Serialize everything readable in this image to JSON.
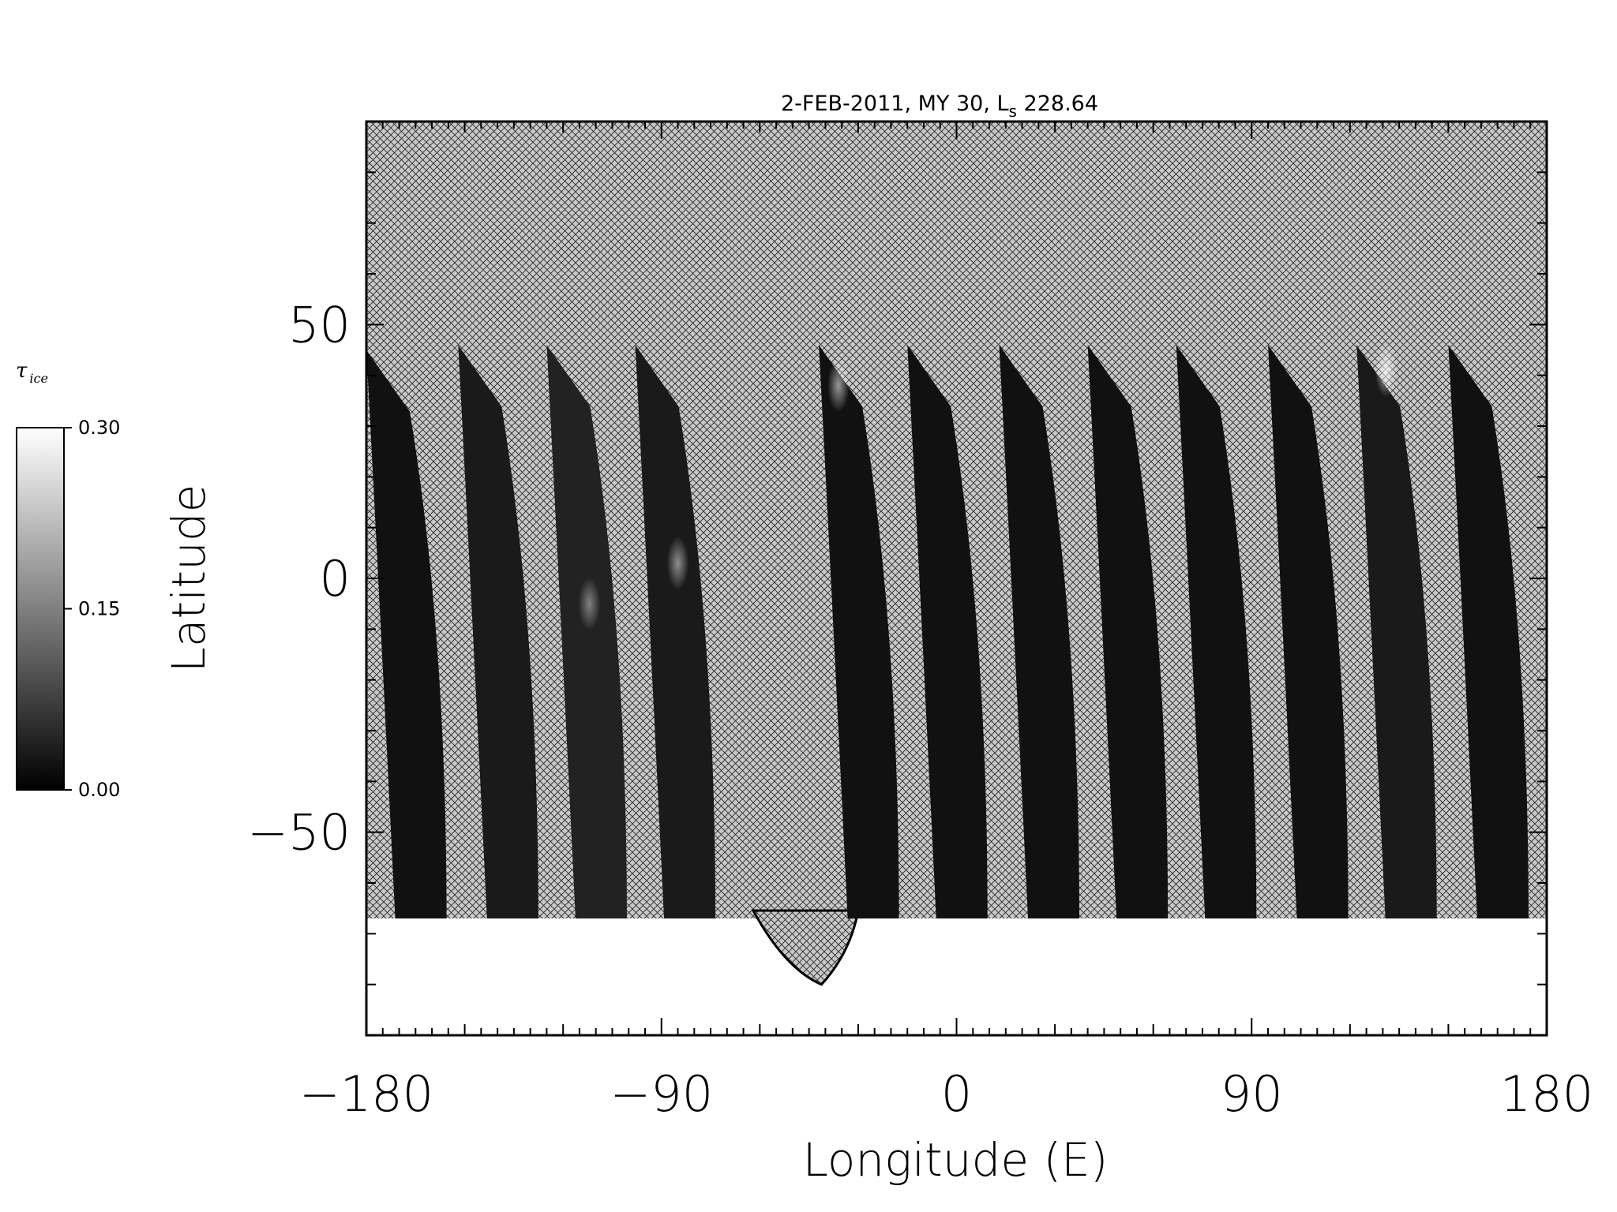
{
  "chart_data": {
    "type": "heatmap",
    "title": "2-FEB-2011, MY 30,  L",
    "title_subscript": "s",
    "title_suffix": " 228.64",
    "xlabel": "Longitude (E)",
    "ylabel": "Latitude",
    "xlim": [
      -180,
      180
    ],
    "ylim": [
      -90,
      90
    ],
    "x_ticks": [
      -180,
      -90,
      0,
      90,
      180
    ],
    "x_tick_labels": [
      "−180",
      "−90",
      "0",
      "90",
      "180"
    ],
    "y_ticks": [
      -50,
      0,
      50
    ],
    "y_tick_labels": [
      "−50",
      "0",
      "50"
    ],
    "x_minor_step": 5,
    "y_minor_step": 10,
    "no_data_fill": "crosshatch",
    "colorbar": {
      "label": "τ",
      "label_subscript": "ice",
      "min": 0.0,
      "max": 0.3,
      "ticks": [
        0.0,
        0.15,
        0.3
      ],
      "tick_labels": [
        "0.00",
        "0.15",
        "0.30"
      ],
      "colormap": "grayscale",
      "low_color": "#000000",
      "high_color": "#ffffff"
    },
    "swaths": [
      {
        "lon_north": -180,
        "lon_south": -170,
        "lat_north": 45,
        "lat_south": -67,
        "tau": 0.02
      },
      {
        "lon_north": -152,
        "lon_south": -142,
        "lat_north": 46,
        "lat_south": -67,
        "tau": 0.03
      },
      {
        "lon_north": -125,
        "lon_south": -115,
        "lat_north": 46,
        "lat_south": -67,
        "tau": 0.04
      },
      {
        "lon_north": -98,
        "lon_south": -88,
        "lat_north": 46,
        "lat_south": -67,
        "tau": 0.03
      },
      {
        "lon_north": -42,
        "lon_south": -32,
        "lat_north": 46,
        "lat_south": -67,
        "tau": 0.02
      },
      {
        "lon_north": -15,
        "lon_south": -5,
        "lat_north": 46,
        "lat_south": -67,
        "tau": 0.02
      },
      {
        "lon_north": 13,
        "lon_south": 23,
        "lat_north": 46,
        "lat_south": -67,
        "tau": 0.02
      },
      {
        "lon_north": 40,
        "lon_south": 50,
        "lat_north": 46,
        "lat_south": -67,
        "tau": 0.02
      },
      {
        "lon_north": 67,
        "lon_south": 77,
        "lat_north": 46,
        "lat_south": -67,
        "tau": 0.02
      },
      {
        "lon_north": 95,
        "lon_south": 105,
        "lat_north": 46,
        "lat_south": -67,
        "tau": 0.02
      },
      {
        "lon_north": 122,
        "lon_south": 132,
        "lat_north": 46,
        "lat_south": -67,
        "tau": 0.03
      },
      {
        "lon_north": 150,
        "lon_south": 160,
        "lat_north": 46,
        "lat_south": -67,
        "tau": 0.02
      }
    ],
    "bright_patches": [
      {
        "lon": -112,
        "lat": -5,
        "tau": 0.15
      },
      {
        "lon": -85,
        "lat": 3,
        "tau": 0.18
      },
      {
        "lon": -36,
        "lat": 38,
        "tau": 0.2
      },
      {
        "lon": 131,
        "lat": 41,
        "tau": 0.25
      }
    ],
    "south_polar_cap": {
      "lat_top": -67,
      "lat_bottom": -90,
      "tau": 0.3
    },
    "cap_gap": {
      "lon_west": -62,
      "lon_east": -30,
      "lat_bottom": -80
    }
  }
}
